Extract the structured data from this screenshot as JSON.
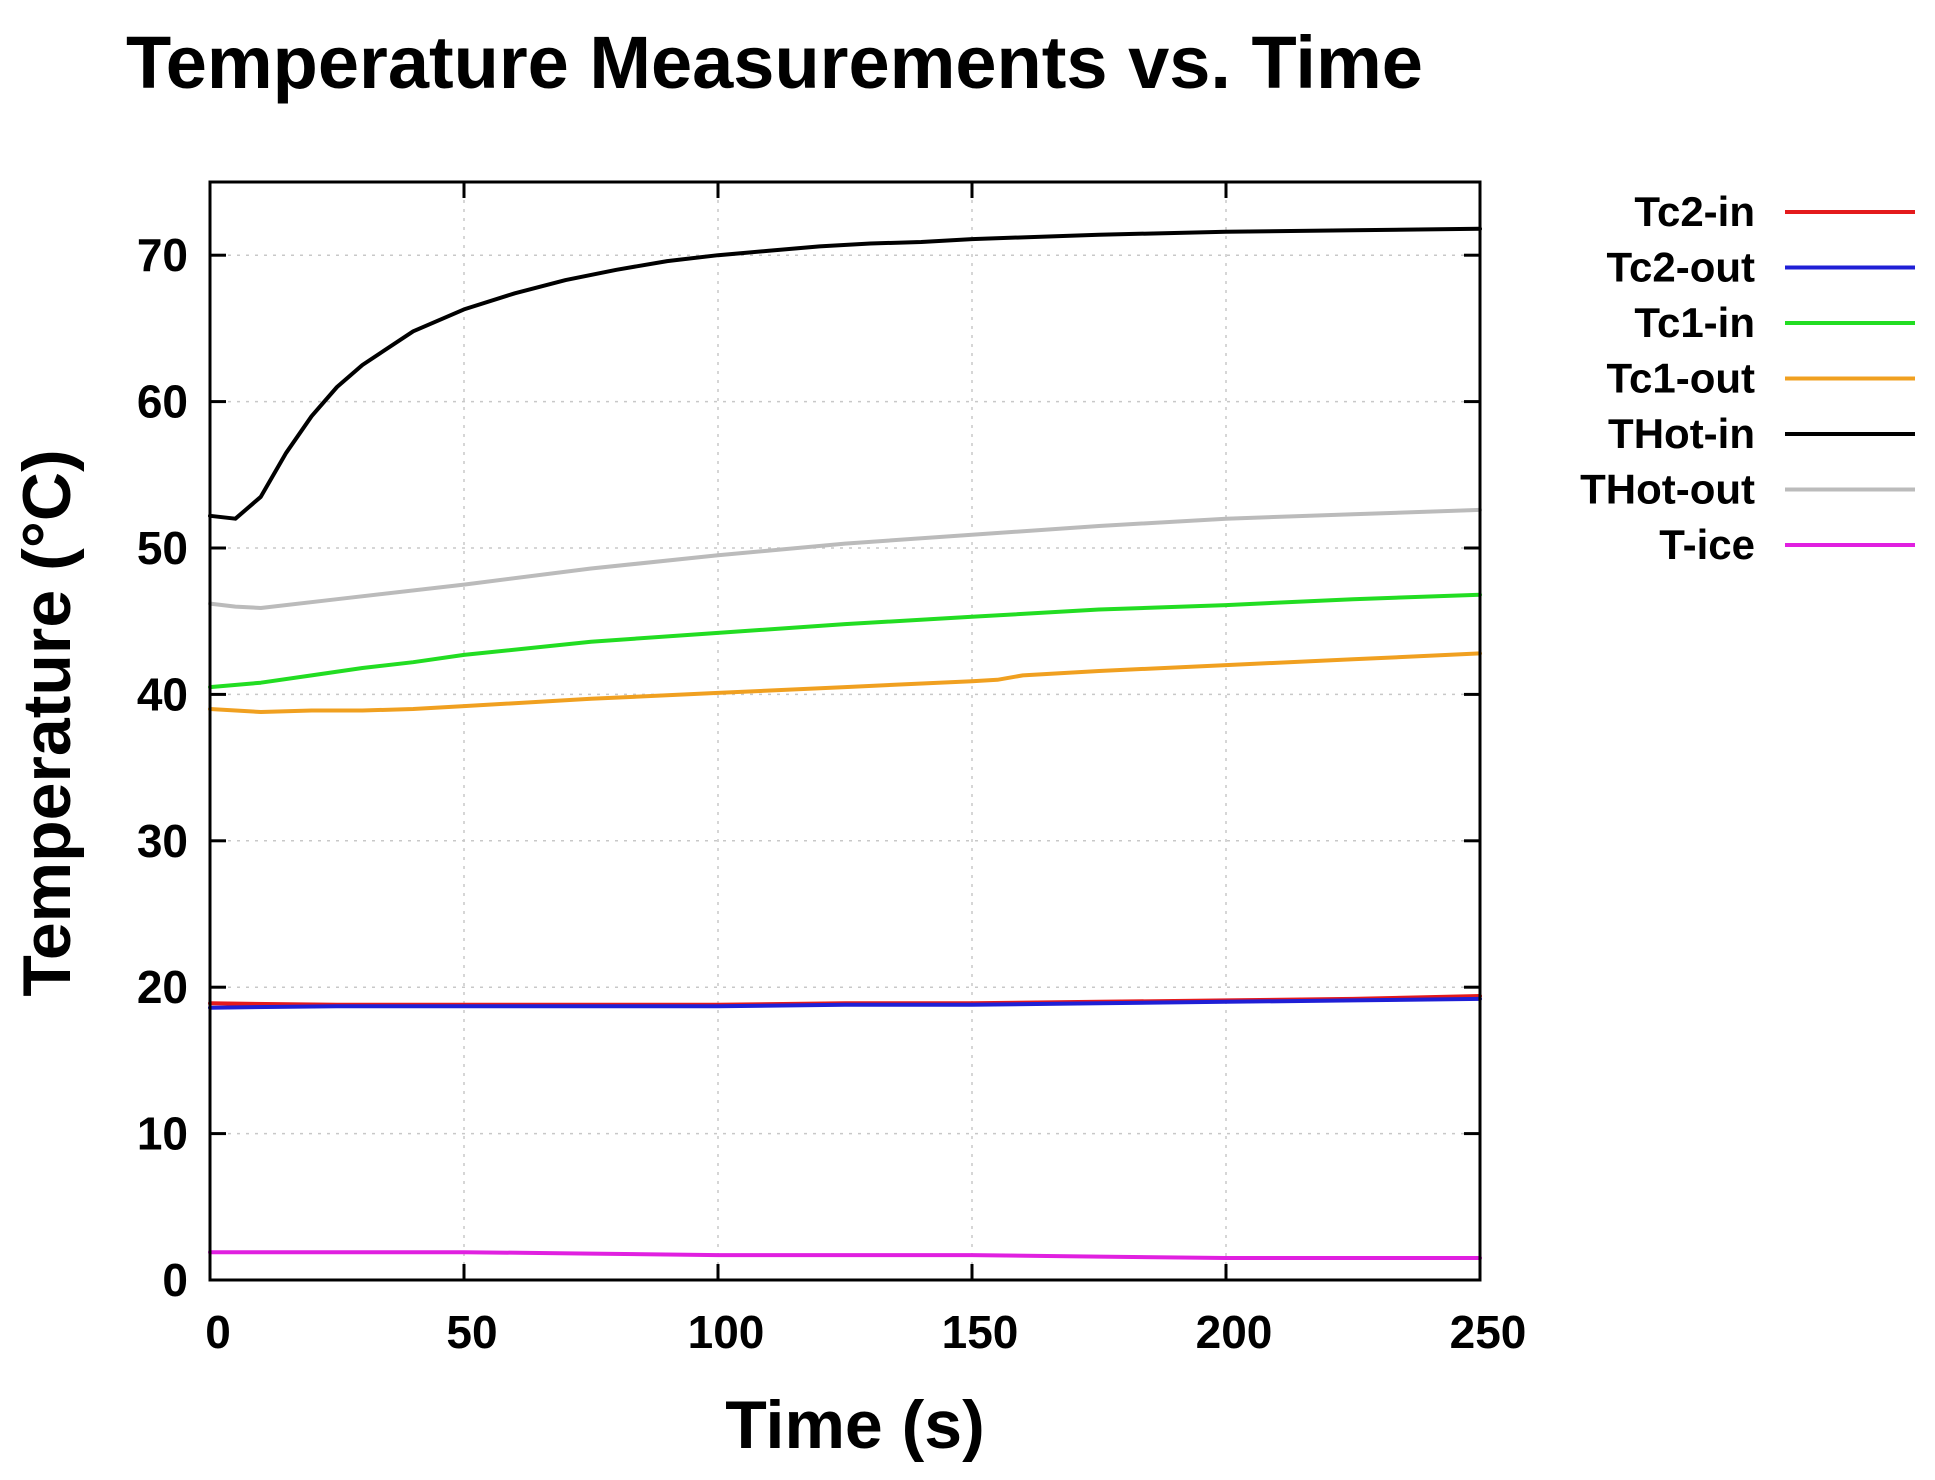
{
  "chart_data": {
    "type": "line",
    "title": "Temperature Measurements vs. Time",
    "xlabel": "Time (s)",
    "ylabel": "Temperature (°C)",
    "xlim": [
      0,
      250
    ],
    "ylim": [
      0,
      75
    ],
    "x_ticks": [
      0,
      50,
      100,
      150,
      200,
      250
    ],
    "y_ticks": [
      0,
      10,
      20,
      30,
      40,
      50,
      60,
      70
    ],
    "grid": true,
    "legend_position": "outside-right-top",
    "series": [
      {
        "name": "Tc2-in",
        "color": "#e41a1c",
        "x": [
          0,
          25,
          50,
          75,
          100,
          125,
          150,
          175,
          200,
          225,
          250
        ],
        "y": [
          18.9,
          18.8,
          18.8,
          18.8,
          18.8,
          18.9,
          18.9,
          19.0,
          19.1,
          19.2,
          19.4
        ]
      },
      {
        "name": "Tc2-out",
        "color": "#1f1fd6",
        "x": [
          0,
          25,
          50,
          75,
          100,
          125,
          150,
          175,
          200,
          225,
          250
        ],
        "y": [
          18.6,
          18.7,
          18.7,
          18.7,
          18.7,
          18.8,
          18.8,
          18.9,
          19.0,
          19.1,
          19.2
        ]
      },
      {
        "name": "Tc1-in",
        "color": "#22dd22",
        "x": [
          0,
          10,
          20,
          30,
          40,
          50,
          75,
          100,
          125,
          150,
          175,
          200,
          225,
          250
        ],
        "y": [
          40.5,
          40.8,
          41.3,
          41.8,
          42.2,
          42.7,
          43.6,
          44.2,
          44.8,
          45.3,
          45.8,
          46.1,
          46.5,
          46.8
        ]
      },
      {
        "name": "Tc1-out",
        "color": "#f0a020",
        "x": [
          0,
          10,
          20,
          30,
          40,
          50,
          75,
          100,
          125,
          150,
          155,
          160,
          175,
          200,
          225,
          250
        ],
        "y": [
          39.0,
          38.8,
          38.9,
          38.9,
          39.0,
          39.2,
          39.7,
          40.1,
          40.5,
          40.9,
          41.0,
          41.3,
          41.6,
          42.0,
          42.4,
          42.8
        ]
      },
      {
        "name": "THot-in",
        "color": "#000000",
        "x": [
          0,
          5,
          10,
          15,
          20,
          25,
          30,
          40,
          50,
          60,
          70,
          80,
          90,
          100,
          110,
          120,
          130,
          140,
          150,
          175,
          200,
          225,
          250
        ],
        "y": [
          52.2,
          52.0,
          53.5,
          56.5,
          59.0,
          61.0,
          62.5,
          64.8,
          66.3,
          67.4,
          68.3,
          69.0,
          69.6,
          70.0,
          70.3,
          70.6,
          70.8,
          70.9,
          71.1,
          71.4,
          71.6,
          71.7,
          71.8
        ]
      },
      {
        "name": "THot-out",
        "color": "#bbbbbb",
        "x": [
          0,
          5,
          10,
          25,
          50,
          75,
          100,
          125,
          150,
          175,
          200,
          225,
          250
        ],
        "y": [
          46.2,
          46.0,
          45.9,
          46.5,
          47.5,
          48.6,
          49.5,
          50.3,
          50.9,
          51.5,
          52.0,
          52.3,
          52.6
        ]
      },
      {
        "name": "T-ice",
        "color": "#e020e0",
        "x": [
          0,
          25,
          50,
          75,
          100,
          125,
          150,
          175,
          200,
          225,
          250
        ],
        "y": [
          1.9,
          1.9,
          1.9,
          1.8,
          1.7,
          1.7,
          1.7,
          1.6,
          1.5,
          1.5,
          1.5
        ]
      }
    ]
  }
}
